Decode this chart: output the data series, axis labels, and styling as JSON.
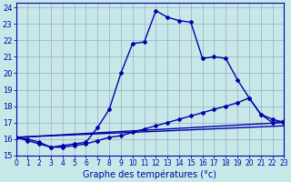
{
  "title": "Graphe des températures (°c)",
  "bg_color": "#c8e8e8",
  "grid_color": "#99aacc",
  "line_color": "#0000aa",
  "xlim": [
    0,
    23
  ],
  "ylim": [
    15,
    24.3
  ],
  "yticks": [
    15,
    16,
    17,
    18,
    19,
    20,
    21,
    22,
    23,
    24
  ],
  "xticks": [
    0,
    1,
    2,
    3,
    4,
    5,
    6,
    7,
    8,
    9,
    10,
    11,
    12,
    13,
    14,
    15,
    16,
    17,
    18,
    19,
    20,
    21,
    22,
    23
  ],
  "series_main_x": [
    0,
    1,
    2,
    3,
    4,
    5,
    6,
    7,
    8,
    9,
    10,
    11,
    12,
    13,
    14,
    15,
    16,
    17,
    18,
    19,
    20,
    21,
    22,
    23
  ],
  "series_main_y": [
    16.1,
    16.0,
    15.8,
    15.5,
    15.6,
    15.7,
    15.8,
    16.7,
    17.8,
    20.0,
    21.8,
    21.9,
    23.8,
    23.4,
    23.2,
    23.1,
    20.9,
    21.0,
    20.9,
    19.6,
    18.5,
    17.5,
    17.0,
    17.1
  ],
  "series2_x": [
    0,
    1,
    2,
    3,
    4,
    5,
    6,
    7,
    8,
    9,
    10,
    11,
    12,
    13,
    14,
    15,
    16,
    17,
    18,
    19,
    20,
    21,
    22,
    23
  ],
  "series2_y": [
    16.1,
    15.9,
    15.7,
    15.5,
    15.5,
    15.6,
    15.7,
    15.9,
    16.1,
    16.2,
    16.4,
    16.6,
    16.8,
    17.0,
    17.2,
    17.4,
    17.6,
    17.8,
    18.0,
    18.2,
    18.5,
    17.5,
    17.2,
    17.0
  ],
  "series3_x": [
    0,
    23
  ],
  "series3_y": [
    16.1,
    17.0
  ],
  "series4_x": [
    0,
    23
  ],
  "series4_y": [
    16.1,
    16.8
  ]
}
